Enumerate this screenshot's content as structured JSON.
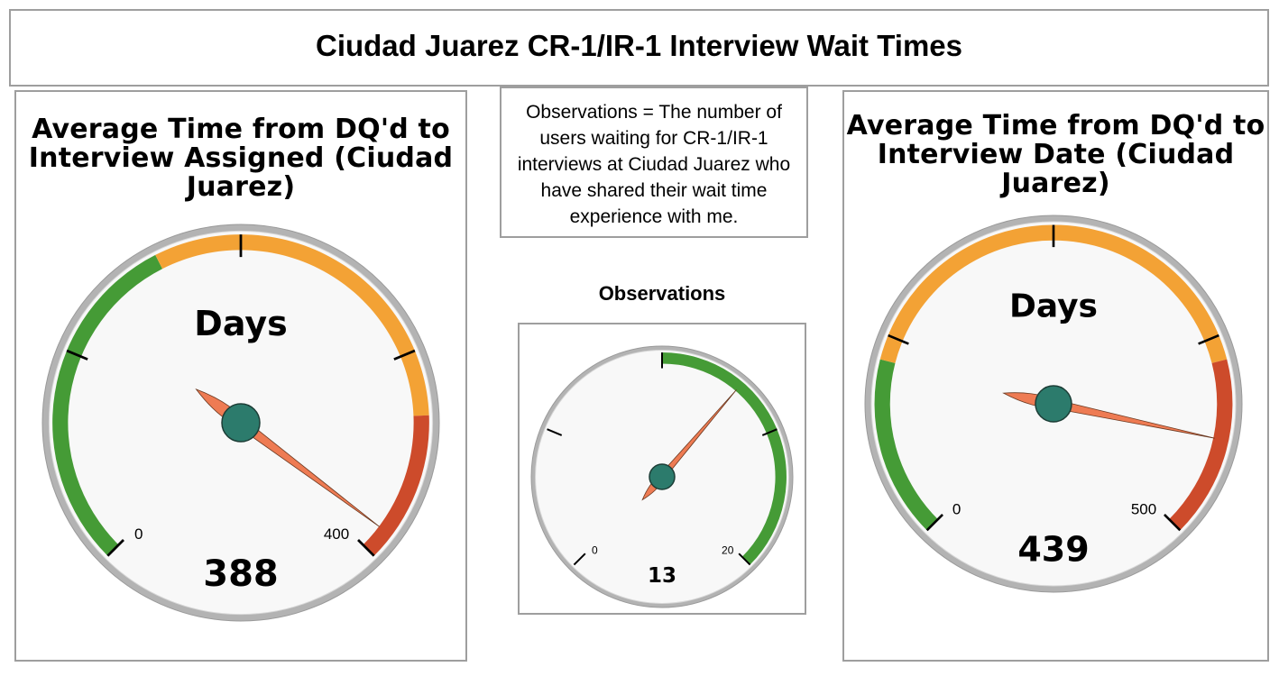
{
  "page": {
    "title": "Ciudad Juarez CR-1/IR-1 Interview Wait Times"
  },
  "note": {
    "text": "Observations = The number of users waiting for CR-1/IR-1 interviews at Ciudad Juarez who have shared their wait time experience with me."
  },
  "colors": {
    "green": "#459b36",
    "orange": "#f3a235",
    "red": "#cd4b2b",
    "needle": "#ee7b53",
    "hub": "#2c7b6c",
    "face": "#f8f8f8",
    "rim": "#b3b3b3"
  },
  "chart_data": [
    {
      "type": "gauge",
      "title": "Average Time from DQ'd to Interview Assigned (Ciudad Juarez)",
      "unit": "Days",
      "value": 388,
      "value_label": "388",
      "min": 0,
      "max": 400,
      "min_label": "0",
      "max_label": "400",
      "bands": [
        {
          "from": 0,
          "to": 160,
          "color": "green"
        },
        {
          "from": 160,
          "to": 330,
          "color": "orange"
        },
        {
          "from": 330,
          "to": 400,
          "color": "red"
        }
      ],
      "ticks": [
        0,
        100,
        200,
        300,
        400
      ]
    },
    {
      "type": "gauge",
      "title": "Observations",
      "unit": "",
      "value": 13,
      "value_label": "13",
      "min": 0,
      "max": 20,
      "min_label": "0",
      "max_label": "20",
      "bands": [
        {
          "from": 10,
          "to": 20,
          "color": "green"
        }
      ],
      "ticks": [
        0,
        5,
        10,
        15,
        20
      ]
    },
    {
      "type": "gauge",
      "title": "Average Time from DQ'd to Interview Date (Ciudad Juarez)",
      "unit": "Days",
      "value": 439,
      "value_label": "439",
      "min": 0,
      "max": 500,
      "min_label": "0",
      "max_label": "500",
      "bands": [
        {
          "from": 0,
          "to": 110,
          "color": "green"
        },
        {
          "from": 110,
          "to": 390,
          "color": "orange"
        },
        {
          "from": 390,
          "to": 500,
          "color": "red"
        }
      ],
      "ticks": [
        0,
        125,
        250,
        375,
        500
      ]
    }
  ]
}
